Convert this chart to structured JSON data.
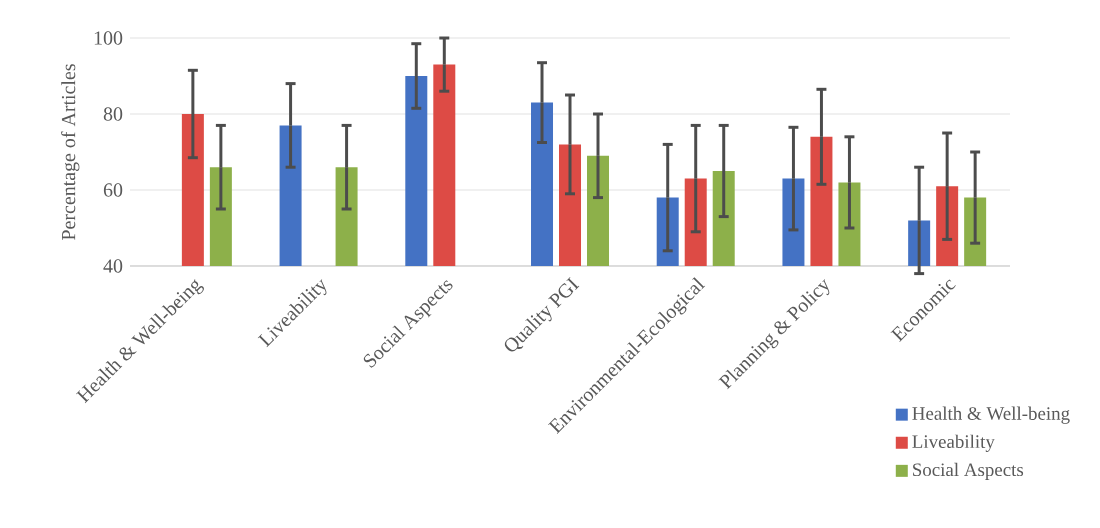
{
  "chart_data": {
    "type": "bar",
    "ylabel": "Percentage of Articles",
    "categories": [
      "Health & Well-being",
      "Liveability",
      "Social Aspects",
      "Quality PGI",
      "Environmental-Ecological",
      "Planning & Policy",
      "Economic"
    ],
    "series": [
      {
        "name": "Health & Well-being",
        "color": "#4472c4",
        "values": [
          null,
          77,
          90,
          83,
          58,
          63,
          52
        ],
        "errors": [
          null,
          11,
          8.5,
          10.5,
          14,
          13.5,
          14
        ]
      },
      {
        "name": "Liveability",
        "color": "#dd4b45",
        "values": [
          80,
          null,
          93,
          72,
          63,
          74,
          61
        ],
        "errors": [
          11.5,
          null,
          7,
          13,
          14,
          12.5,
          14
        ]
      },
      {
        "name": "Social Aspects",
        "color": "#8db04a",
        "values": [
          66,
          66,
          null,
          69,
          65,
          62,
          58
        ],
        "errors": [
          11,
          11,
          null,
          11,
          12,
          12,
          12
        ]
      }
    ],
    "ylim": [
      40,
      100
    ],
    "yticks": [
      40,
      60,
      80,
      100
    ],
    "grid": "y",
    "legend": "bottom right"
  }
}
